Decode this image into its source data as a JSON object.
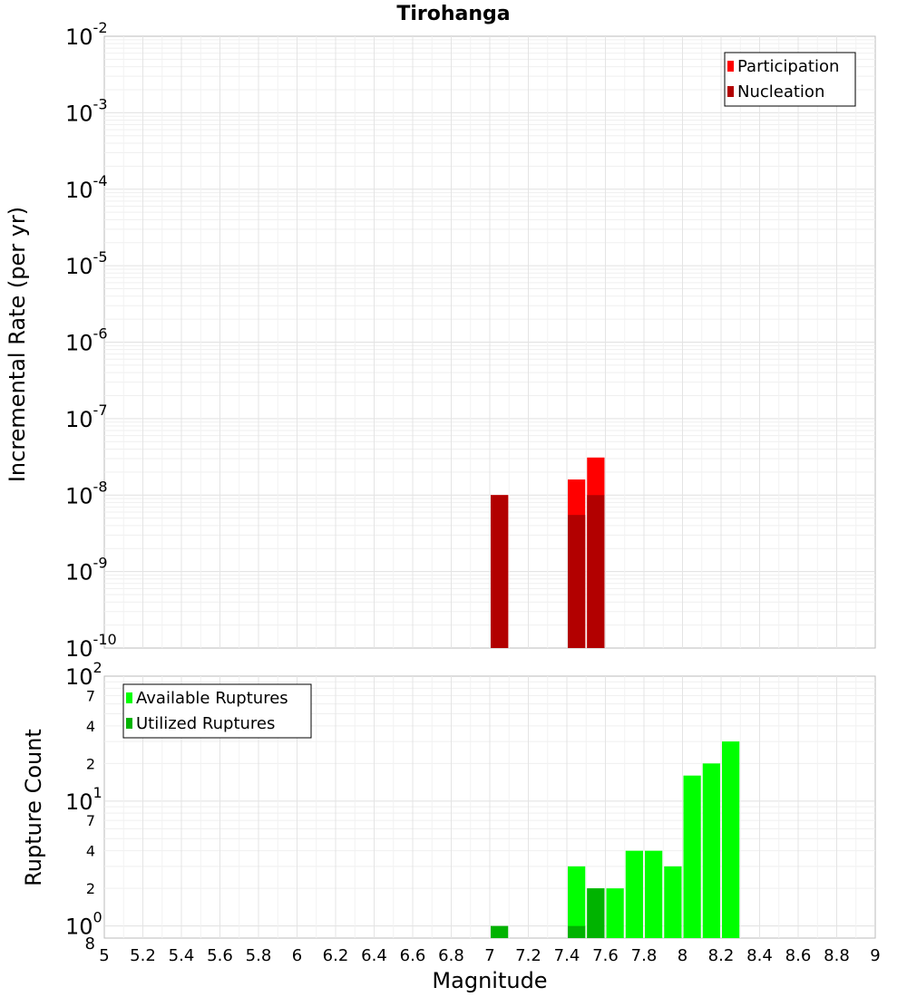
{
  "chart_data": [
    {
      "type": "bar",
      "title": "Tirohanga",
      "ylabel": "Incremental Rate (per yr)",
      "xlim": [
        5,
        9
      ],
      "ylim": [
        1e-10,
        0.01
      ],
      "yscale": "log",
      "y_tick_labels": [
        {
          "base": "10",
          "exp": "-2"
        },
        {
          "base": "10",
          "exp": "-3"
        },
        {
          "base": "10",
          "exp": "-4"
        },
        {
          "base": "10",
          "exp": "-5"
        },
        {
          "base": "10",
          "exp": "-6"
        },
        {
          "base": "10",
          "exp": "-7"
        },
        {
          "base": "10",
          "exp": "-8"
        },
        {
          "base": "10",
          "exp": "-9"
        },
        {
          "base": "10",
          "exp": "-10"
        }
      ],
      "grid": true,
      "legend": "top-right",
      "series": [
        {
          "name": "Participation",
          "color": "#ff0000",
          "x": [
            7.05,
            7.45,
            7.55
          ],
          "values": [
            1e-08,
            1.6e-08,
            3.1e-08
          ]
        },
        {
          "name": "Nucleation",
          "color": "#b20000",
          "x": [
            7.05,
            7.45,
            7.55
          ],
          "values": [
            1e-08,
            5.5e-09,
            1e-08
          ]
        }
      ]
    },
    {
      "type": "bar",
      "xlabel": "Magnitude",
      "ylabel": "Rupture Count",
      "xlim": [
        5,
        9
      ],
      "ylim": [
        0.8,
        100
      ],
      "yscale": "log",
      "x_tick_labels": [
        "5",
        "5.2",
        "5.4",
        "5.6",
        "5.8",
        "6",
        "6.2",
        "6.4",
        "6.6",
        "6.8",
        "7",
        "7.2",
        "7.4",
        "7.6",
        "7.8",
        "8",
        "8.2",
        "8.4",
        "8.6",
        "8.8",
        "9"
      ],
      "y_tick_labels": [
        {
          "text": "2",
          "exp": true
        },
        {
          "text": "7"
        },
        {
          "text": "4"
        },
        {
          "text": "2"
        },
        {
          "text": "1",
          "exp": true
        },
        {
          "text": "7"
        },
        {
          "text": "4"
        },
        {
          "text": "2"
        },
        {
          "text": "0",
          "exp": true
        },
        {
          "text": "8"
        }
      ],
      "grid": true,
      "legend": "top-left",
      "series": [
        {
          "name": "Available Ruptures",
          "color": "#00ff00",
          "x": [
            7.45,
            7.55,
            7.65,
            7.75,
            7.85,
            7.95,
            8.05,
            8.15,
            8.25
          ],
          "values": [
            3,
            2,
            2,
            4,
            4,
            3,
            16,
            20,
            30
          ]
        },
        {
          "name": "Utilized Ruptures",
          "color": "#00b300",
          "x": [
            7.05,
            7.45,
            7.55
          ],
          "values": [
            1,
            1,
            2
          ]
        }
      ]
    }
  ]
}
